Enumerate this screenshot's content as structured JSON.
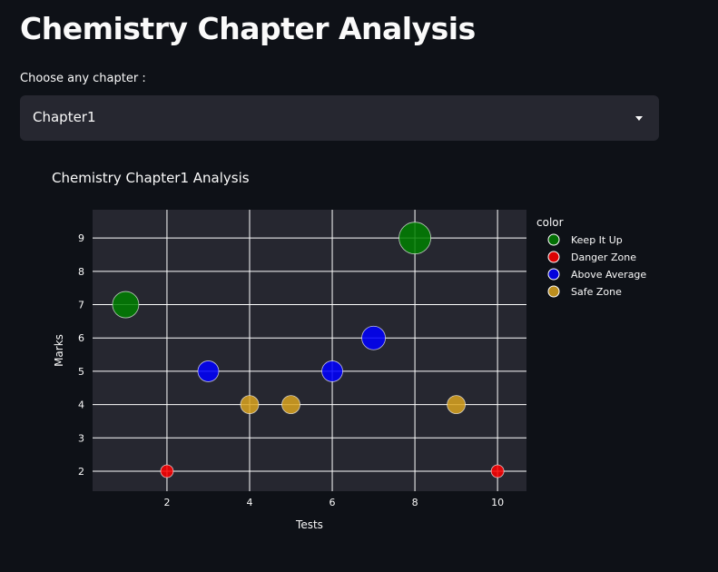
{
  "app": {
    "title": "Chemistry Chapter Analysis",
    "select_label": "Choose any chapter :",
    "selected_chapter": "Chapter1"
  },
  "colors": {
    "Keep It Up": "#008000",
    "Danger Zone": "#ff0000",
    "Above Average": "#0000ff",
    "Safe Zone": "#daa520"
  },
  "chart_data": {
    "type": "scatter",
    "title": "Chemistry Chapter1 Analysis",
    "xlabel": "Tests",
    "ylabel": "Marks",
    "xlim": [
      0.2,
      10.7
    ],
    "ylim": [
      1.4,
      9.85
    ],
    "xticks": [
      2,
      4,
      6,
      8,
      10
    ],
    "yticks": [
      2,
      3,
      4,
      5,
      6,
      7,
      8,
      9
    ],
    "grid": true,
    "legend_title": "color",
    "legend_position": "right",
    "series": [
      {
        "name": "Keep It Up",
        "x": [
          1,
          8
        ],
        "y": [
          7,
          9
        ]
      },
      {
        "name": "Danger Zone",
        "x": [
          2,
          10
        ],
        "y": [
          2,
          2
        ]
      },
      {
        "name": "Above Average",
        "x": [
          3,
          6,
          7
        ],
        "y": [
          5,
          5,
          6
        ]
      },
      {
        "name": "Safe Zone",
        "x": [
          4,
          5,
          9
        ],
        "y": [
          4,
          4,
          4
        ]
      }
    ]
  }
}
